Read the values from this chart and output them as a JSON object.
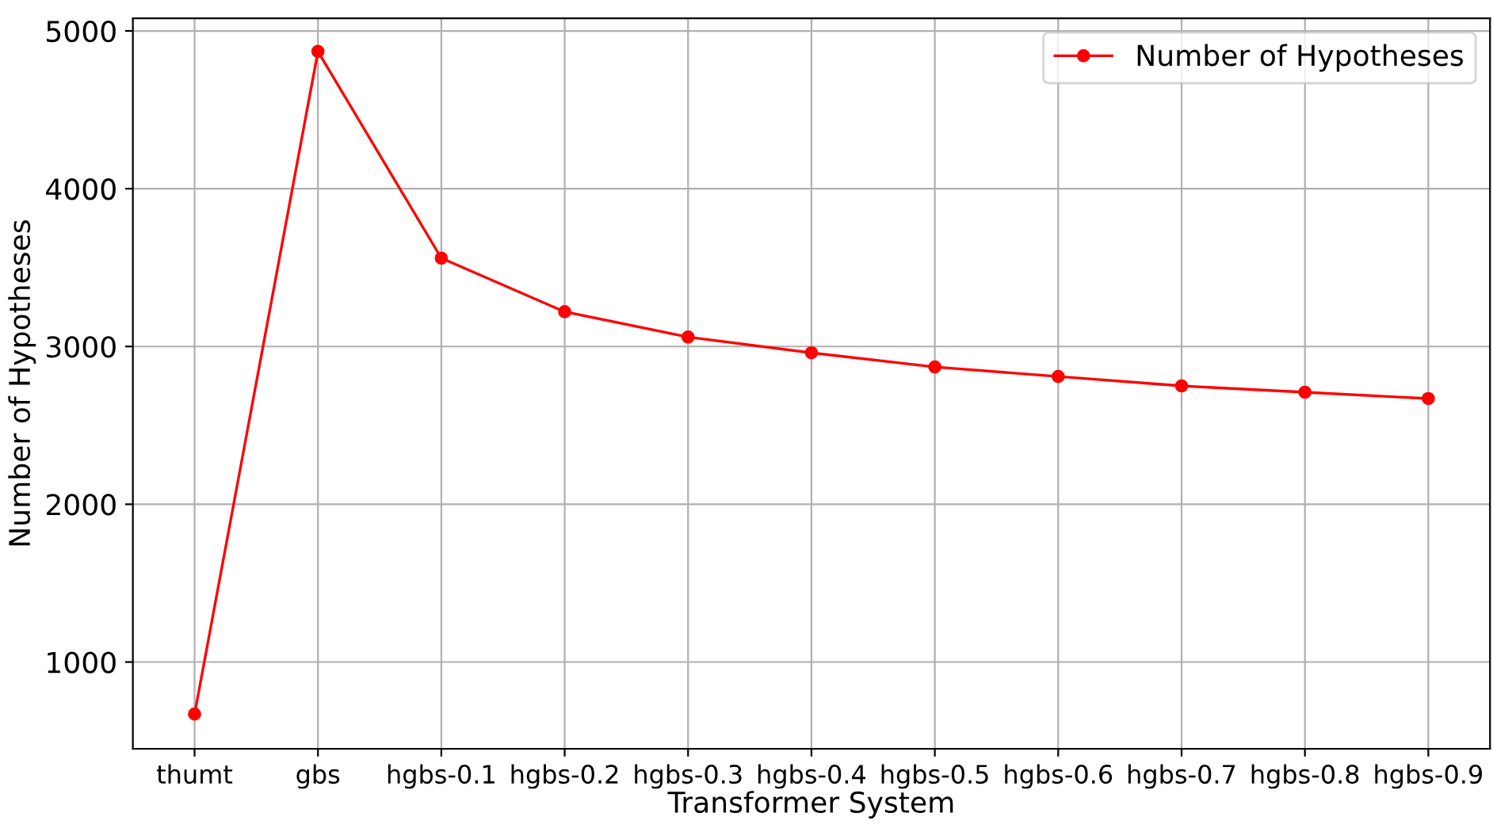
{
  "chart_data": {
    "type": "line",
    "xlabel": "Transformer System",
    "ylabel": "Number of Hypotheses",
    "categories": [
      "thumt",
      "gbs",
      "hgbs-0.1",
      "hgbs-0.2",
      "hgbs-0.3",
      "hgbs-0.4",
      "hgbs-0.5",
      "hgbs-0.6",
      "hgbs-0.7",
      "hgbs-0.8",
      "hgbs-0.9"
    ],
    "series": [
      {
        "name": "Number of Hypotheses",
        "color": "#ff0000",
        "values": [
          670,
          4870,
          3560,
          3220,
          3060,
          2960,
          2870,
          2810,
          2750,
          2710,
          2670
        ]
      }
    ],
    "ylim": [
      450,
      5080
    ],
    "yticks": [
      1000,
      2000,
      3000,
      4000,
      5000
    ],
    "grid": true,
    "legend": "top right",
    "marker": "circle",
    "line_style": "solid"
  }
}
